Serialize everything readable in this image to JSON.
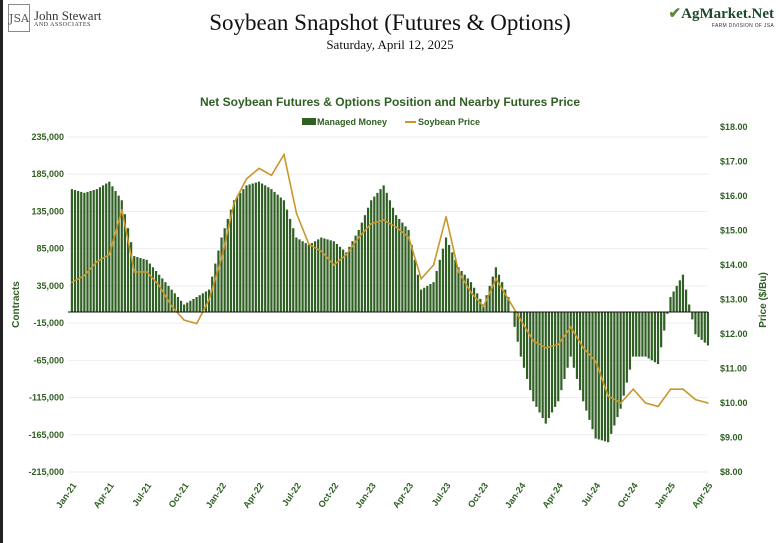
{
  "header": {
    "logo_left": {
      "line1": "John Stewart",
      "line2": "AND ASSOCIATES",
      "mark": "JSA"
    },
    "logo_right": {
      "line1": "AgMarket.Net",
      "line2": "FARM DIVISION OF JSA"
    },
    "title": "Soybean Snapshot (Futures & Options)",
    "subtitle": "Saturday, April 12, 2025"
  },
  "colors": {
    "bars": "#2f5f23",
    "line": "#c9972a",
    "text": "#2f5f23"
  },
  "chart_data": {
    "type": "bar+line",
    "title": "Net Soybean Futures & Options Position and Nearby Futures Price",
    "ylabel": "Contracts",
    "y2label": "Price ($/Bu)",
    "ylim": [
      -215000,
      235000
    ],
    "y2lim": [
      8,
      18
    ],
    "yticks": [
      "235,000",
      "185,000",
      "135,000",
      "85,000",
      "35,000",
      "-15,000",
      "-65,000",
      "-115,000",
      "-165,000",
      "-215,000"
    ],
    "y2ticks": [
      "$18.00",
      "$17.00",
      "$16.00",
      "$15.00",
      "$14.00",
      "$13.00",
      "$12.00",
      "$11.00",
      "$10.00",
      "$9.00",
      "$8.00"
    ],
    "xticks": [
      "Jan-21",
      "Apr-21",
      "Jul-21",
      "Oct-21",
      "Jan-22",
      "Apr-22",
      "Jul-22",
      "Oct-22",
      "Jan-23",
      "Apr-23",
      "Jul-23",
      "Oct-23",
      "Jan-24",
      "Apr-24",
      "Jul-24",
      "Oct-24",
      "Jan-25",
      "Apr-25"
    ],
    "grid": true,
    "legend": "top-center",
    "x": [
      "Jan-21",
      "Feb-21",
      "Mar-21",
      "Apr-21",
      "May-21",
      "Jun-21",
      "Jul-21",
      "Aug-21",
      "Sep-21",
      "Oct-21",
      "Nov-21",
      "Dec-21",
      "Jan-22",
      "Feb-22",
      "Mar-22",
      "Apr-22",
      "May-22",
      "Jun-22",
      "Jul-22",
      "Aug-22",
      "Sep-22",
      "Oct-22",
      "Nov-22",
      "Dec-22",
      "Jan-23",
      "Feb-23",
      "Mar-23",
      "Apr-23",
      "May-23",
      "Jun-23",
      "Jul-23",
      "Aug-23",
      "Sep-23",
      "Oct-23",
      "Nov-23",
      "Dec-23",
      "Jan-24",
      "Feb-24",
      "Mar-24",
      "Apr-24",
      "May-24",
      "Jun-24",
      "Jul-24",
      "Aug-24",
      "Sep-24",
      "Oct-24",
      "Nov-24",
      "Dec-24",
      "Jan-25",
      "Feb-25",
      "Mar-25",
      "Apr-25"
    ],
    "series": [
      {
        "name": "Managed Money",
        "type": "bar",
        "axis": "left",
        "values": [
          165000,
          160000,
          165000,
          175000,
          150000,
          75000,
          70000,
          50000,
          30000,
          10000,
          20000,
          30000,
          100000,
          150000,
          170000,
          175000,
          165000,
          150000,
          100000,
          90000,
          100000,
          95000,
          80000,
          110000,
          150000,
          170000,
          130000,
          110000,
          30000,
          40000,
          100000,
          60000,
          40000,
          10000,
          60000,
          20000,
          -60000,
          -120000,
          -150000,
          -120000,
          -60000,
          -120000,
          -170000,
          -175000,
          -130000,
          -60000,
          -60000,
          -70000,
          20000,
          50000,
          -30000,
          -45000
        ]
      },
      {
        "name": "Soybean Price",
        "type": "line",
        "axis": "right",
        "values": [
          13.5,
          13.7,
          14.1,
          14.3,
          15.6,
          13.8,
          13.8,
          13.4,
          12.8,
          12.4,
          12.3,
          13.0,
          14.2,
          15.8,
          16.5,
          16.8,
          16.6,
          17.2,
          15.5,
          14.6,
          14.4,
          14.0,
          14.3,
          14.8,
          15.2,
          15.3,
          15.1,
          14.8,
          13.6,
          14.0,
          15.4,
          13.8,
          13.2,
          12.8,
          13.6,
          13.0,
          12.4,
          11.8,
          11.6,
          11.7,
          12.2,
          11.6,
          11.2,
          10.2,
          10.0,
          10.4,
          10.0,
          9.9,
          10.4,
          10.4,
          10.1,
          10.0
        ]
      }
    ]
  }
}
